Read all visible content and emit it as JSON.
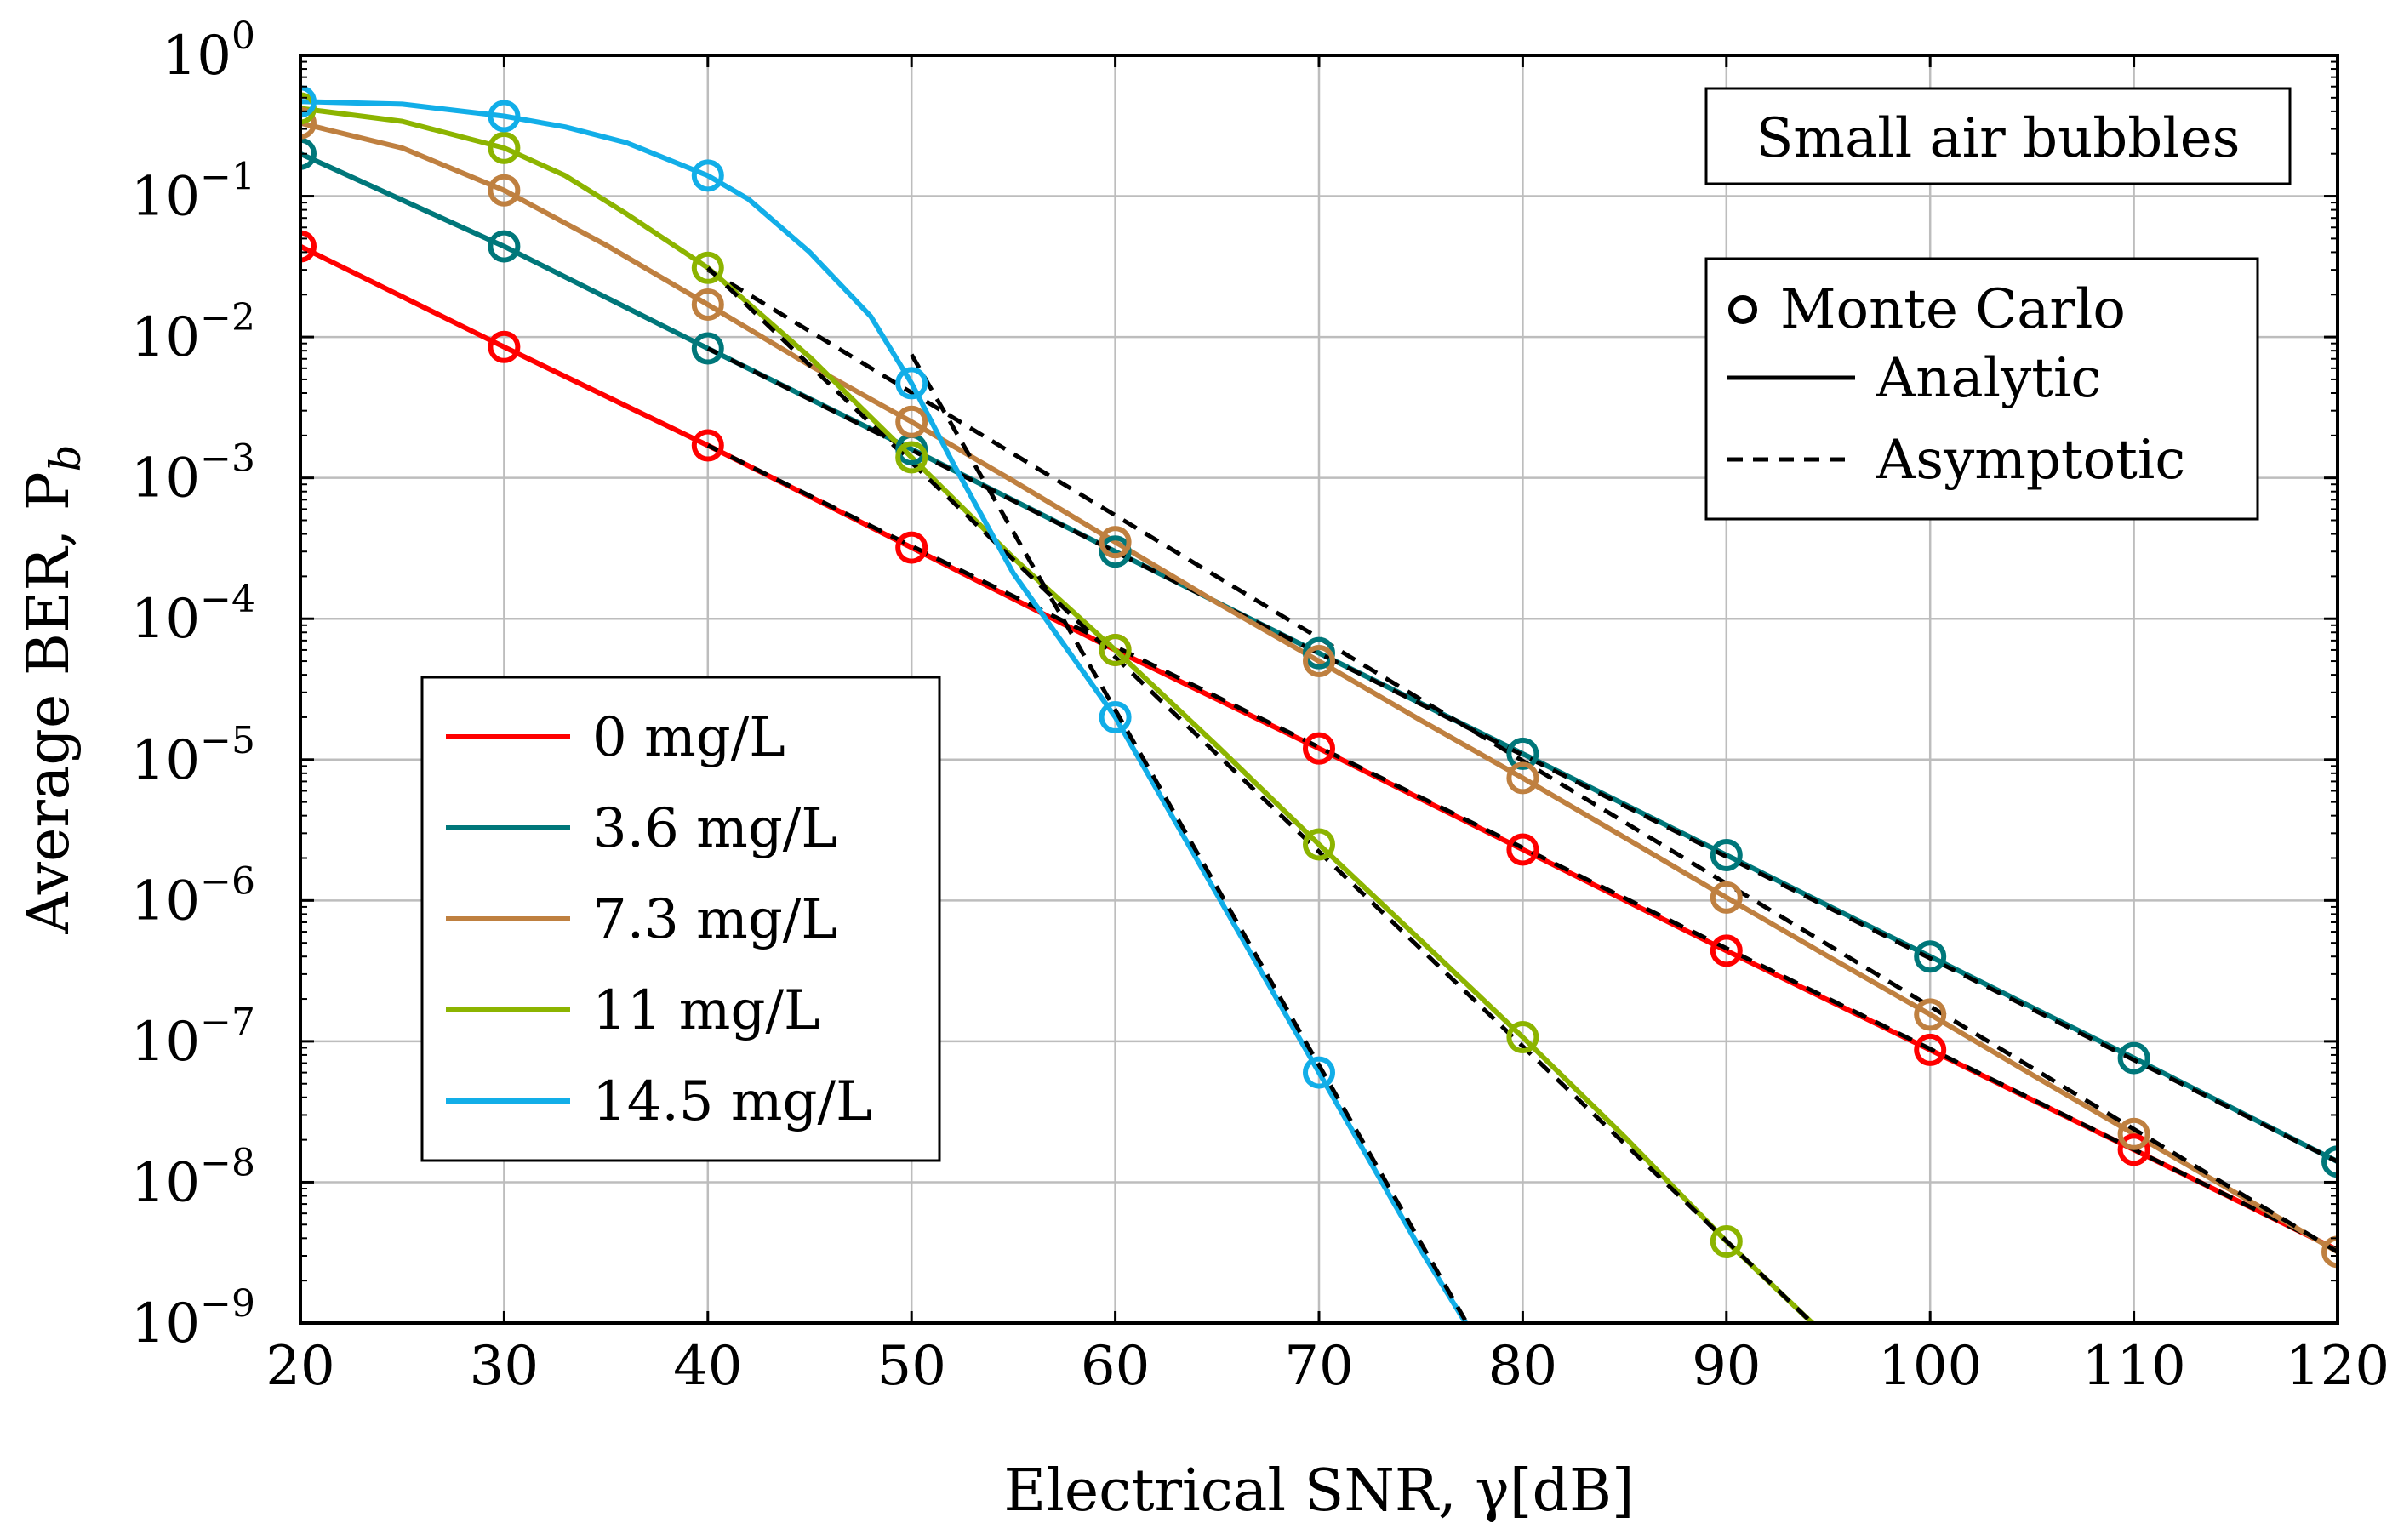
{
  "chart_data": {
    "type": "line",
    "xlabel": "Electrical SNR, γ[dB]",
    "ylabel": "Average BER, P",
    "ylabel_sub": "b",
    "xlim": [
      20,
      120
    ],
    "ylim": [
      1e-09,
      1
    ],
    "yscale": "log",
    "grid": true,
    "x_ticks": [
      "20",
      "30",
      "40",
      "50",
      "60",
      "70",
      "80",
      "90",
      "100",
      "110",
      "120"
    ],
    "y_ticks": [
      {
        "base": "10",
        "exp": "−9"
      },
      {
        "base": "10",
        "exp": "−8"
      },
      {
        "base": "10",
        "exp": "−7"
      },
      {
        "base": "10",
        "exp": "−6"
      },
      {
        "base": "10",
        "exp": "−5"
      },
      {
        "base": "10",
        "exp": "−4"
      },
      {
        "base": "10",
        "exp": "−3"
      },
      {
        "base": "10",
        "exp": "−2"
      },
      {
        "base": "10",
        "exp": "−1"
      },
      {
        "base": "10",
        "exp": "0"
      }
    ],
    "annotation": "Small air bubbles",
    "legend_markers": {
      "position": "top-right",
      "entries": [
        "Monte Carlo",
        "Analytic",
        "Asymptotic"
      ]
    },
    "legend_series_position": "center-left",
    "series": [
      {
        "name": "0 mg/L",
        "color": "#ff0000",
        "analytic": {
          "x": [
            20,
            30,
            40,
            50,
            60,
            70,
            80,
            90,
            100,
            110,
            120
          ],
          "y": [
            0.044,
            0.0085,
            0.0017,
            0.00032,
            6e-05,
            1.2e-05,
            2.3e-06,
            4.4e-07,
            8.7e-08,
            1.7e-08,
            3.3e-09
          ]
        },
        "monte_carlo": {
          "x": [
            20,
            30,
            40,
            50,
            60,
            70,
            80,
            90,
            100,
            110
          ],
          "y": [
            0.044,
            0.0085,
            0.0017,
            0.00032,
            6e-05,
            1.2e-05,
            2.3e-06,
            4.4e-07,
            8.7e-08,
            1.7e-08
          ]
        },
        "asymptotic": {
          "x": [
            40,
            120
          ],
          "y": [
            0.0017,
            3.3e-09
          ]
        }
      },
      {
        "name": "3.6 mg/L",
        "color": "#00777a",
        "analytic": {
          "x": [
            20,
            30,
            40,
            50,
            60,
            70,
            80,
            90,
            100,
            110,
            120
          ],
          "y": [
            0.2,
            0.044,
            0.0083,
            0.0016,
            0.0003,
            5.7e-05,
            1.1e-05,
            2.1e-06,
            4e-07,
            7.6e-08,
            1.4e-08
          ]
        },
        "monte_carlo": {
          "x": [
            20,
            30,
            40,
            50,
            60,
            70,
            80,
            90,
            100,
            110,
            120
          ],
          "y": [
            0.2,
            0.044,
            0.0083,
            0.0016,
            0.0003,
            5.7e-05,
            1.1e-05,
            2.1e-06,
            4e-07,
            7.6e-08,
            1.4e-08
          ]
        },
        "asymptotic": {
          "x": [
            40,
            120
          ],
          "y": [
            0.0083,
            1.4e-08
          ]
        }
      },
      {
        "name": "7.3 mg/L",
        "color": "#bf8040",
        "analytic": {
          "x": [
            20,
            25,
            30,
            35,
            40,
            45,
            50,
            55,
            60,
            65,
            70,
            75,
            80,
            85,
            90,
            95,
            100,
            105,
            110,
            115,
            120
          ],
          "y": [
            0.33,
            0.22,
            0.11,
            0.045,
            0.017,
            0.0063,
            0.0025,
            0.00095,
            0.00035,
            0.00013,
            5e-05,
            1.9e-05,
            7.4e-06,
            2.8e-06,
            1.05e-06,
            4e-07,
            1.55e-07,
            5.8e-08,
            2.2e-08,
            8.4e-09,
            3.2e-09
          ]
        },
        "monte_carlo": {
          "x": [
            20,
            30,
            40,
            50,
            60,
            70,
            80,
            90,
            100,
            110,
            120
          ],
          "y": [
            0.33,
            0.11,
            0.017,
            0.0025,
            0.00035,
            5e-05,
            7.4e-06,
            1.05e-06,
            1.55e-07,
            2.2e-08,
            3.2e-09
          ]
        },
        "asymptotic": {
          "x": [
            40,
            120
          ],
          "y": [
            0.03,
            3.2e-09
          ]
        }
      },
      {
        "name": "11 mg/L",
        "color": "#8cb400",
        "analytic": {
          "x": [
            20,
            25,
            30,
            33,
            36,
            40,
            45,
            50,
            55,
            60,
            65,
            70,
            75,
            80,
            85,
            90,
            95
          ],
          "y": [
            0.42,
            0.34,
            0.22,
            0.14,
            0.075,
            0.031,
            0.0072,
            0.0014,
            0.00027,
            6e-05,
            1.25e-05,
            2.5e-06,
            5.2e-07,
            1.07e-07,
            2.1e-08,
            3.8e-09,
            7.8e-10
          ]
        },
        "monte_carlo": {
          "x": [
            20,
            30,
            40,
            50,
            60,
            70,
            80,
            90
          ],
          "y": [
            0.42,
            0.22,
            0.031,
            0.0014,
            6e-05,
            2.5e-06,
            1.07e-07,
            3.8e-09
          ]
        },
        "asymptotic": {
          "x": [
            40,
            95
          ],
          "y": [
            0.031,
            7.8e-10
          ]
        }
      },
      {
        "name": "14.5 mg/L",
        "color": "#12aee8",
        "analytic": {
          "x": [
            20,
            25,
            30,
            33,
            36,
            40,
            42,
            45,
            48,
            50,
            52,
            55,
            60,
            65,
            70,
            75,
            78
          ],
          "y": [
            0.47,
            0.45,
            0.37,
            0.31,
            0.24,
            0.14,
            0.095,
            0.04,
            0.014,
            0.0047,
            0.0013,
            0.00021,
            2e-05,
            1.1e-06,
            6e-08,
            3.3e-09,
            6.5e-10
          ]
        },
        "monte_carlo": {
          "x": [
            20,
            30,
            40,
            50,
            60,
            70
          ],
          "y": [
            0.47,
            0.37,
            0.14,
            0.0047,
            2e-05,
            6e-08
          ]
        },
        "asymptotic": {
          "x": [
            50,
            78
          ],
          "y": [
            0.0075,
            6.5e-10
          ]
        }
      }
    ]
  }
}
